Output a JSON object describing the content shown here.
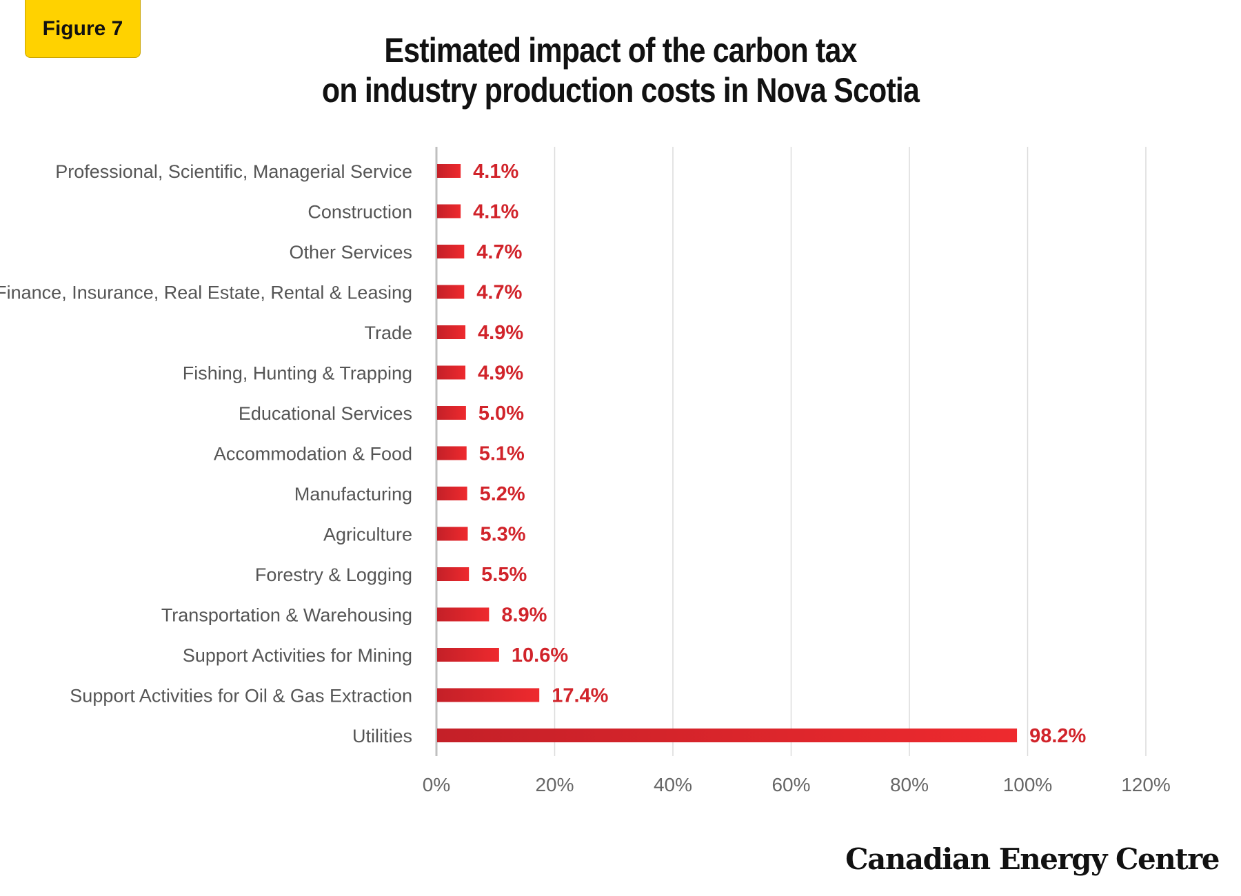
{
  "badge": {
    "label": "Figure 7"
  },
  "title": {
    "line1": "Estimated impact of the carbon tax",
    "line2": "on industry production costs in Nova Scotia"
  },
  "brand": {
    "label": "Canadian Energy Centre"
  },
  "colors": {
    "bar_light": "#EE2A2E",
    "bar_dark": "#C42028",
    "value_label": "#D1232A",
    "grid": "#dcdcdc",
    "axis": "#bfbfbf",
    "tick_text": "#666666",
    "category_text": "#555555"
  },
  "chart_data": {
    "type": "bar",
    "orientation": "horizontal",
    "categories": [
      "Professional, Scientific, Managerial Service",
      "Construction",
      "Other Services",
      "Finance, Insurance, Real Estate, Rental & Leasing",
      "Trade",
      "Fishing, Hunting & Trapping",
      "Educational Services",
      "Accommodation & Food",
      "Manufacturing",
      "Agriculture",
      "Forestry & Logging",
      "Transportation & Warehousing",
      "Support Activities for Mining",
      "Support Activities for Oil & Gas Extraction",
      "Utilities"
    ],
    "values": [
      4.1,
      4.1,
      4.7,
      4.7,
      4.9,
      4.9,
      5.0,
      5.1,
      5.2,
      5.3,
      5.5,
      8.9,
      10.6,
      17.4,
      98.2
    ],
    "value_labels": [
      "4.1%",
      "4.1%",
      "4.7%",
      "4.7%",
      "4.9%",
      "4.9%",
      "5.0%",
      "5.1%",
      "5.2%",
      "5.3%",
      "5.5%",
      "8.9%",
      "10.6%",
      "17.4%",
      "98.2%"
    ],
    "xlim": [
      0,
      120
    ],
    "x_ticks": [
      0,
      20,
      40,
      60,
      80,
      100,
      120
    ],
    "x_tick_labels": [
      "0%",
      "20%",
      "40%",
      "60%",
      "80%",
      "100%",
      "120%"
    ],
    "grid": "vertical",
    "legend": "none"
  }
}
